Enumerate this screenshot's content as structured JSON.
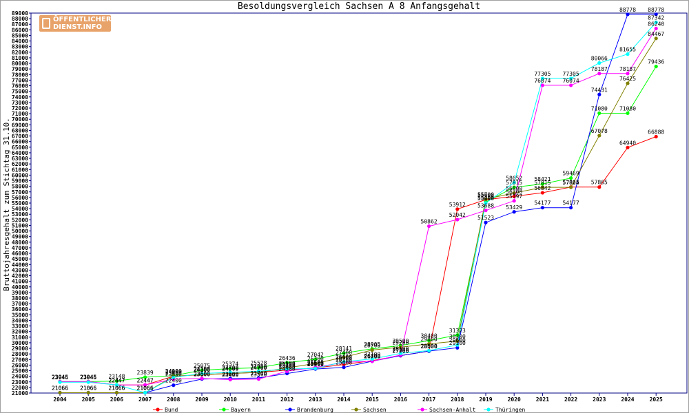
{
  "logo": {
    "line1": "ÖFFENTLICHER",
    "line2": "DIENST.INFO"
  },
  "chart_data": {
    "type": "line",
    "title": "Besoldungsvergleich Sachsen A 8 Anfangsgehalt",
    "xlabel": "",
    "ylabel": "Bruttojahresgehalt zum Stichtag 31.10.",
    "ylim": [
      21000,
      89000
    ],
    "ytick_step": 1000,
    "grid": false,
    "legend_position": "bottom",
    "x": [
      "2004",
      "2005",
      "2006",
      "2007",
      "2008",
      "2009",
      "2010",
      "2011",
      "2012",
      "2013",
      "2014",
      "2015",
      "2016",
      "2017",
      "2018",
      "2019",
      "2020",
      "2021",
      "2022",
      "2023",
      "2024",
      "2025"
    ],
    "series": [
      {
        "name": "Bund",
        "color": "#ff0000",
        "values": [
          23045,
          23045,
          22447,
          22447,
          24000,
          24300,
          24500,
          24700,
          25100,
          25500,
          26100,
          26800,
          27700,
          28500,
          53912,
          55600,
          56200,
          56842,
          57865,
          57865,
          64940,
          66888
        ]
      },
      {
        "name": "Bayern",
        "color": "#00ff00",
        "values": [
          23045,
          23045,
          23148,
          23839,
          24100,
          25075,
          25374,
          25528,
          26436,
          27042,
          28141,
          28905,
          29500,
          30400,
          31373,
          55200,
          57815,
          58421,
          59469,
          71080,
          71080,
          79436
        ]
      },
      {
        "name": "Brandenburg",
        "color": "#0000ff",
        "values": [
          21066,
          21066,
          21066,
          21066,
          22400,
          23500,
          23600,
          23700,
          24500,
          25300,
          25600,
          26700,
          27700,
          28500,
          29100,
          51523,
          53429,
          54177,
          54177,
          74431,
          88778,
          88778
        ]
      },
      {
        "name": "Sachsen",
        "color": "#808000",
        "values": [
          21066,
          21066,
          21066,
          21066,
          24000,
          24300,
          24500,
          24700,
          25500,
          26300,
          27400,
          28700,
          29200,
          29800,
          30300,
          55700,
          56800,
          57815,
          57824,
          67078,
          76425,
          84467
        ]
      },
      {
        "name": "Sachsen-Anhalt",
        "color": "#ff00ff",
        "values": [
          23045,
          23045,
          22447,
          22447,
          23500,
          23600,
          23400,
          23500,
          24900,
          25600,
          26500,
          26700,
          27800,
          50862,
          52042,
          53688,
          55397,
          76074,
          76074,
          78187,
          78187,
          86240
        ]
      },
      {
        "name": "Thüringen",
        "color": "#00ffff",
        "values": [
          22946,
          22946,
          22447,
          21066,
          23800,
          24500,
          24700,
          24900,
          25300,
          25400,
          26600,
          27100,
          28100,
          28600,
          29600,
          55000,
          58652,
          77305,
          77305,
          80066,
          81655,
          87342
        ]
      }
    ]
  }
}
